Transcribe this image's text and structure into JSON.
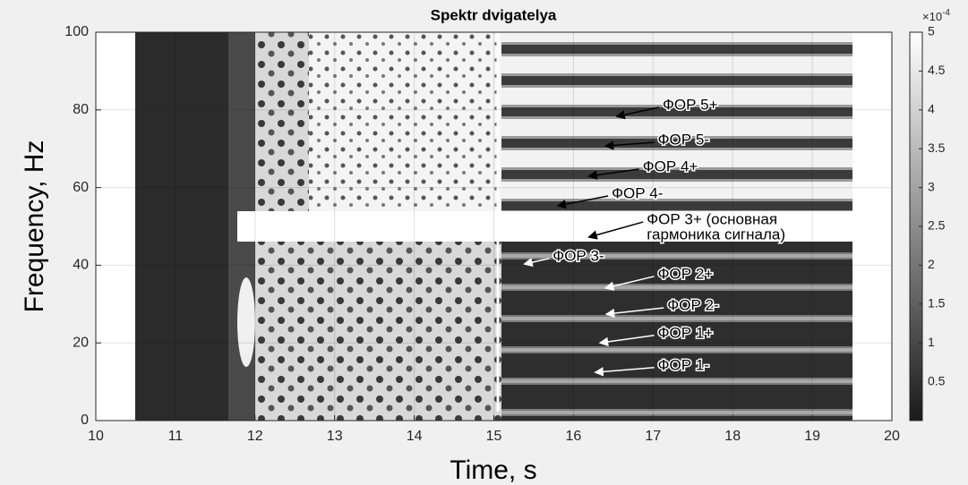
{
  "chart_data": {
    "type": "spectrogram",
    "title": "Spektr dvigatelya",
    "xlabel": "Time, s",
    "ylabel": "Frequency, Hz",
    "xlim": [
      10,
      20
    ],
    "ylim": [
      0,
      100
    ],
    "xticks": [
      10,
      11,
      12,
      13,
      14,
      15,
      16,
      17,
      18,
      19,
      20
    ],
    "yticks": [
      0,
      20,
      40,
      60,
      80,
      100
    ],
    "grid": true,
    "colorbar": {
      "clim": [
        0,
        5
      ],
      "ticks": [
        0.5,
        1,
        1.5,
        2,
        2.5,
        3,
        3.5,
        4,
        4.5,
        5
      ],
      "scale_base": "×10",
      "scale_exponent": "-4"
    },
    "annotations": [
      {
        "lines": [
          "ФОР 5+"
        ],
        "xy": [
          16.54,
          78.3
        ],
        "xytext": [
          17.12,
          81.1
        ],
        "color": "#000000"
      },
      {
        "lines": [
          "ФОР 5-"
        ],
        "xy": [
          16.4,
          70.7
        ],
        "xytext": [
          17.06,
          72.1
        ],
        "color": "#000000"
      },
      {
        "lines": [
          "ФОР 4+"
        ],
        "xy": [
          16.19,
          62.9
        ],
        "xytext": [
          16.87,
          65.2
        ],
        "color": "#000000"
      },
      {
        "lines": [
          "ФОР 4-"
        ],
        "xy": [
          15.8,
          55.3
        ],
        "xytext": [
          16.48,
          58.3
        ],
        "color": "#000000"
      },
      {
        "lines": [
          "ФОР 3+ (основная",
          "гармоника сигнала)"
        ],
        "xy": [
          16.19,
          47.2
        ],
        "xytext": [
          16.92,
          51.6
        ],
        "color": "#000000"
      },
      {
        "lines": [
          "ФОР 3-"
        ],
        "xy": [
          15.38,
          40.3
        ],
        "xytext": [
          15.74,
          42.2
        ],
        "color": "#ffffff"
      },
      {
        "lines": [
          "ФОР 2+"
        ],
        "xy": [
          16.4,
          34.1
        ],
        "xytext": [
          17.06,
          37.6
        ],
        "color": "#ffffff"
      },
      {
        "lines": [
          "ФОР 2-"
        ],
        "xy": [
          16.41,
          27.4
        ],
        "xytext": [
          17.18,
          29.5
        ],
        "color": "#ffffff"
      },
      {
        "lines": [
          "ФОР 1+"
        ],
        "xy": [
          16.33,
          20.0
        ],
        "xytext": [
          17.06,
          22.4
        ],
        "color": "#ffffff"
      },
      {
        "lines": [
          "ФОР 1-"
        ],
        "xy": [
          16.27,
          12.4
        ],
        "xytext": [
          17.06,
          14.1
        ],
        "color": "#ffffff"
      }
    ]
  }
}
